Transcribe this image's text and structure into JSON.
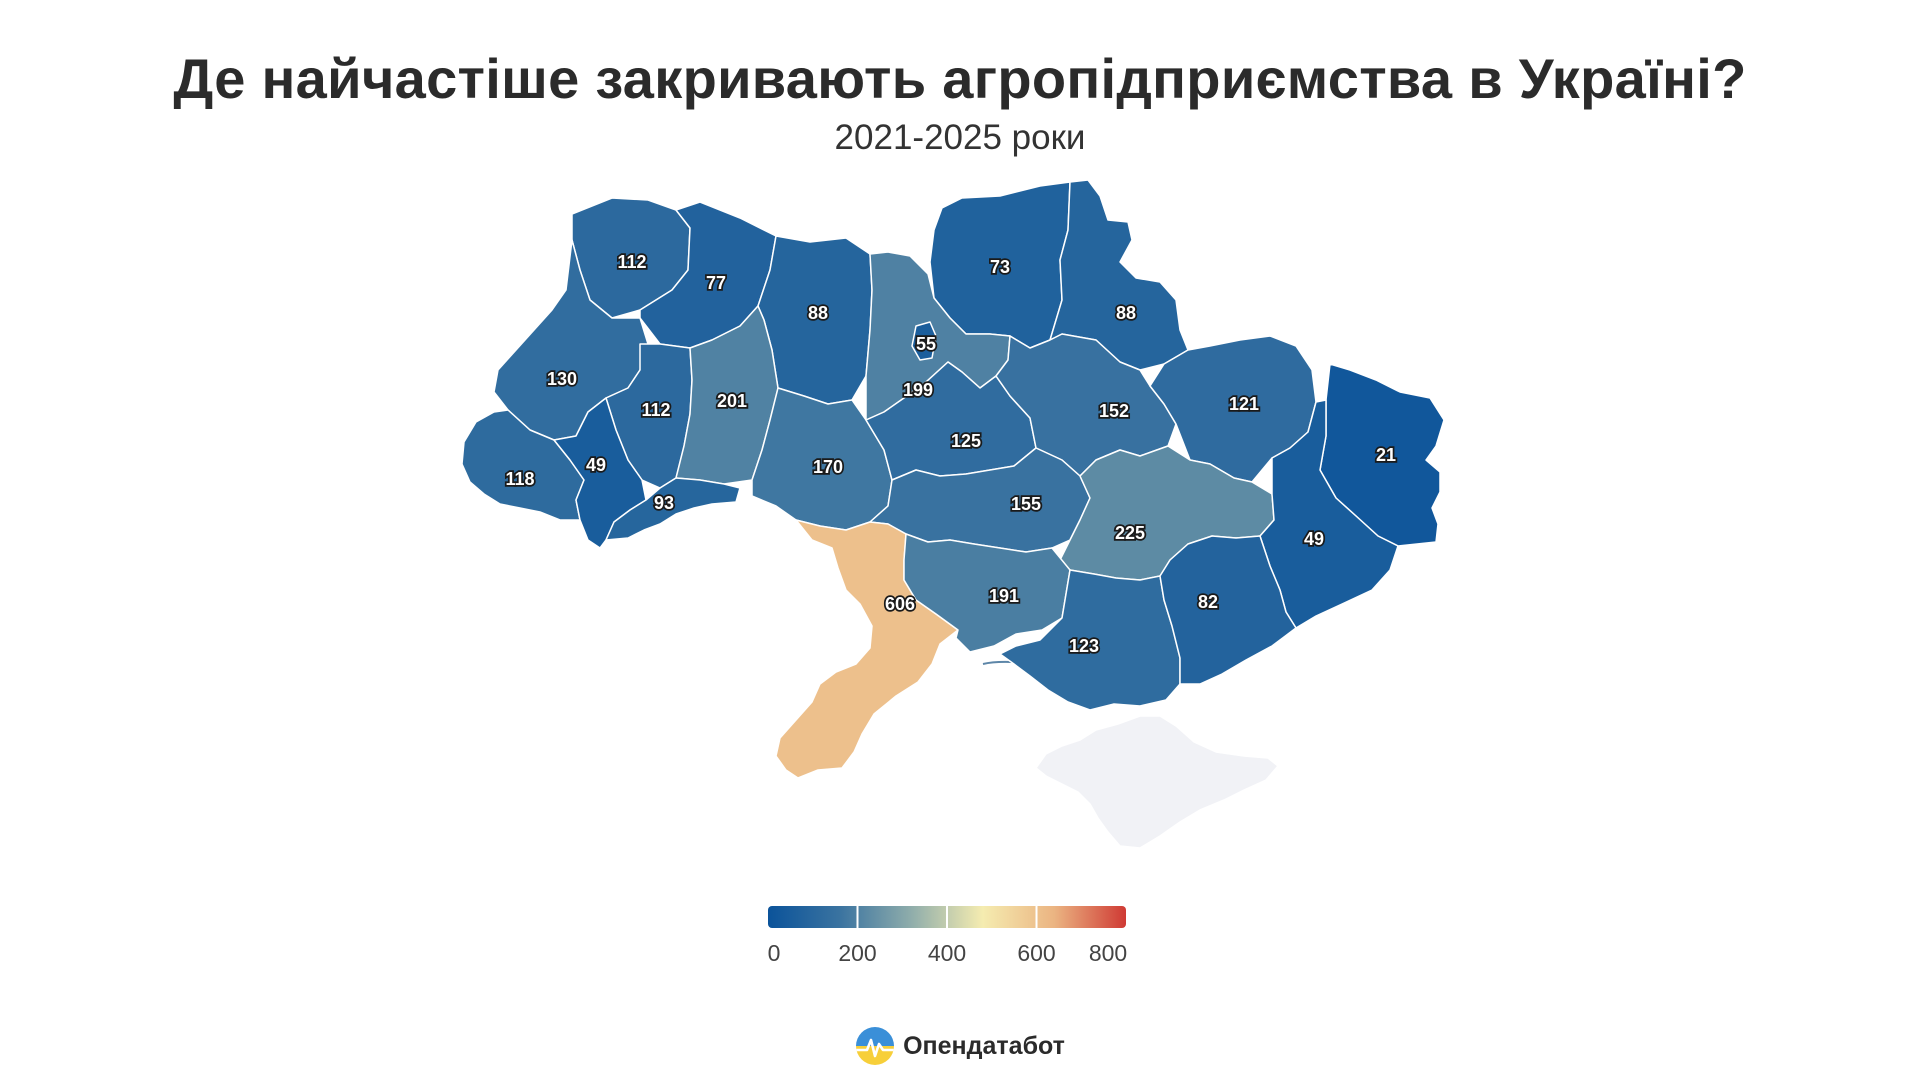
{
  "title": "Де найчастіше закривають агропідприємства в Україні?",
  "subtitle": "2021-2025 роки",
  "colors": {
    "scale_stops": [
      "#0b539a",
      "#3a73a0",
      "#8fadab",
      "#f5ecb0",
      "#ebb482",
      "#cf3a34"
    ],
    "no_data": "#f1f2f6",
    "label_outline": "#1a1a1a"
  },
  "chart_data": {
    "type": "choropleth",
    "regions": [
      {
        "name": "Volyn",
        "value": 112
      },
      {
        "name": "Rivne",
        "value": 77
      },
      {
        "name": "Zhytomyr",
        "value": 88
      },
      {
        "name": "Kyiv oblast",
        "value": 199
      },
      {
        "name": "Kyiv city",
        "value": 55
      },
      {
        "name": "Chernihiv",
        "value": 73
      },
      {
        "name": "Sumy",
        "value": 88
      },
      {
        "name": "Lviv",
        "value": 130
      },
      {
        "name": "Ternopil",
        "value": 112
      },
      {
        "name": "Khmelnytskyi",
        "value": 201
      },
      {
        "name": "Vinnytsia",
        "value": 170
      },
      {
        "name": "Cherkasy",
        "value": 125
      },
      {
        "name": "Poltava",
        "value": 152
      },
      {
        "name": "Kharkiv",
        "value": 121
      },
      {
        "name": "Luhansk",
        "value": 21
      },
      {
        "name": "Zakarpattia",
        "value": 118
      },
      {
        "name": "Ivano-Frankivsk",
        "value": 49
      },
      {
        "name": "Chernivtsi",
        "value": 93
      },
      {
        "name": "Kirovohrad",
        "value": 155
      },
      {
        "name": "Dnipropetrovsk",
        "value": 225
      },
      {
        "name": "Donetsk",
        "value": 49
      },
      {
        "name": "Odesa",
        "value": 606
      },
      {
        "name": "Mykolaiv",
        "value": 191
      },
      {
        "name": "Kherson",
        "value": 123
      },
      {
        "name": "Zaporizhzhia",
        "value": 82
      },
      {
        "name": "Crimea",
        "value": null
      }
    ],
    "legend": {
      "min": 0,
      "max": 800,
      "ticks": [
        "0",
        "200",
        "400",
        "600",
        "800"
      ]
    }
  },
  "brand": {
    "name": "Опендатабот",
    "icon": "opendatabot-logo-icon"
  }
}
